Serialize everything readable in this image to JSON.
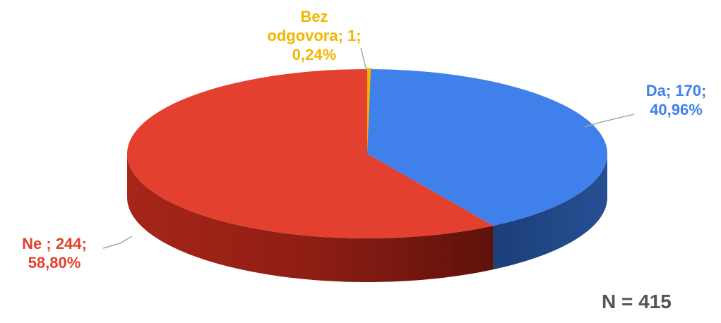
{
  "chart_data": {
    "type": "pie",
    "title": "",
    "style": "3d",
    "total_label": "N = 415",
    "slices": [
      {
        "name": "Bez odgovora",
        "count": 1,
        "percent": 0.24,
        "color": "#f5b400",
        "label_lines": [
          "Bez",
          "odgovora; 1;",
          "0,24%"
        ]
      },
      {
        "name": "Da",
        "count": 170,
        "percent": 40.96,
        "color": "#3f80ea",
        "label_lines": [
          "Da; 170;",
          "40,96%"
        ]
      },
      {
        "name": "Ne",
        "count": 244,
        "percent": 58.8,
        "color": "#e3402f",
        "label_lines": [
          "Ne ; 244;",
          "58,80%"
        ]
      }
    ]
  }
}
